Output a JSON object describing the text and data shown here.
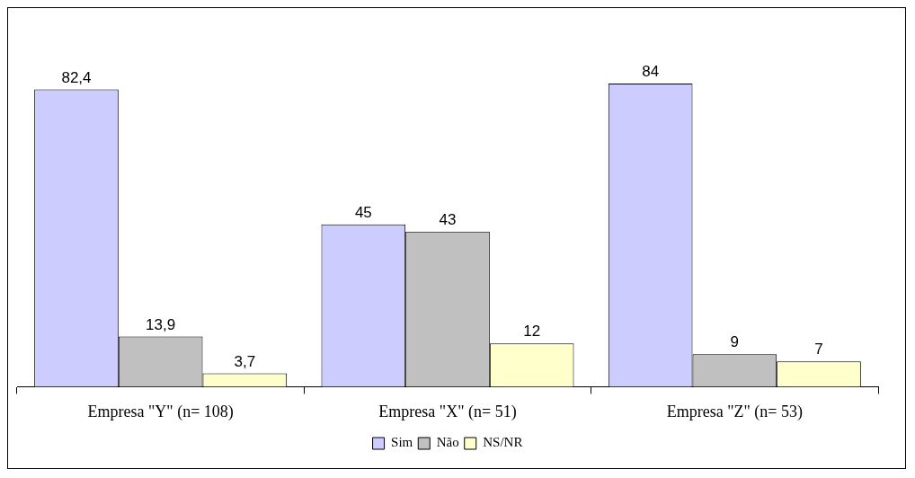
{
  "chart_data": {
    "type": "bar",
    "categories": [
      "Empresa \"Y\" (n= 108)",
      "Empresa \"X\" (n= 51)",
      "Empresa \"Z\" (n= 53)"
    ],
    "series": [
      {
        "name": "Sim",
        "color": "#ccccff",
        "values": [
          82.4,
          45,
          84
        ],
        "value_labels": [
          "82,4",
          "45",
          "84"
        ]
      },
      {
        "name": "Não",
        "color": "#c0c0c0",
        "values": [
          13.9,
          43,
          9
        ],
        "value_labels": [
          "13,9",
          "43",
          "9"
        ]
      },
      {
        "name": "NS/NR",
        "color": "#ffffcc",
        "values": [
          3.7,
          12,
          7
        ],
        "value_labels": [
          "3,7",
          "12",
          "7"
        ]
      }
    ],
    "legend": "bottom",
    "grid": false
  }
}
